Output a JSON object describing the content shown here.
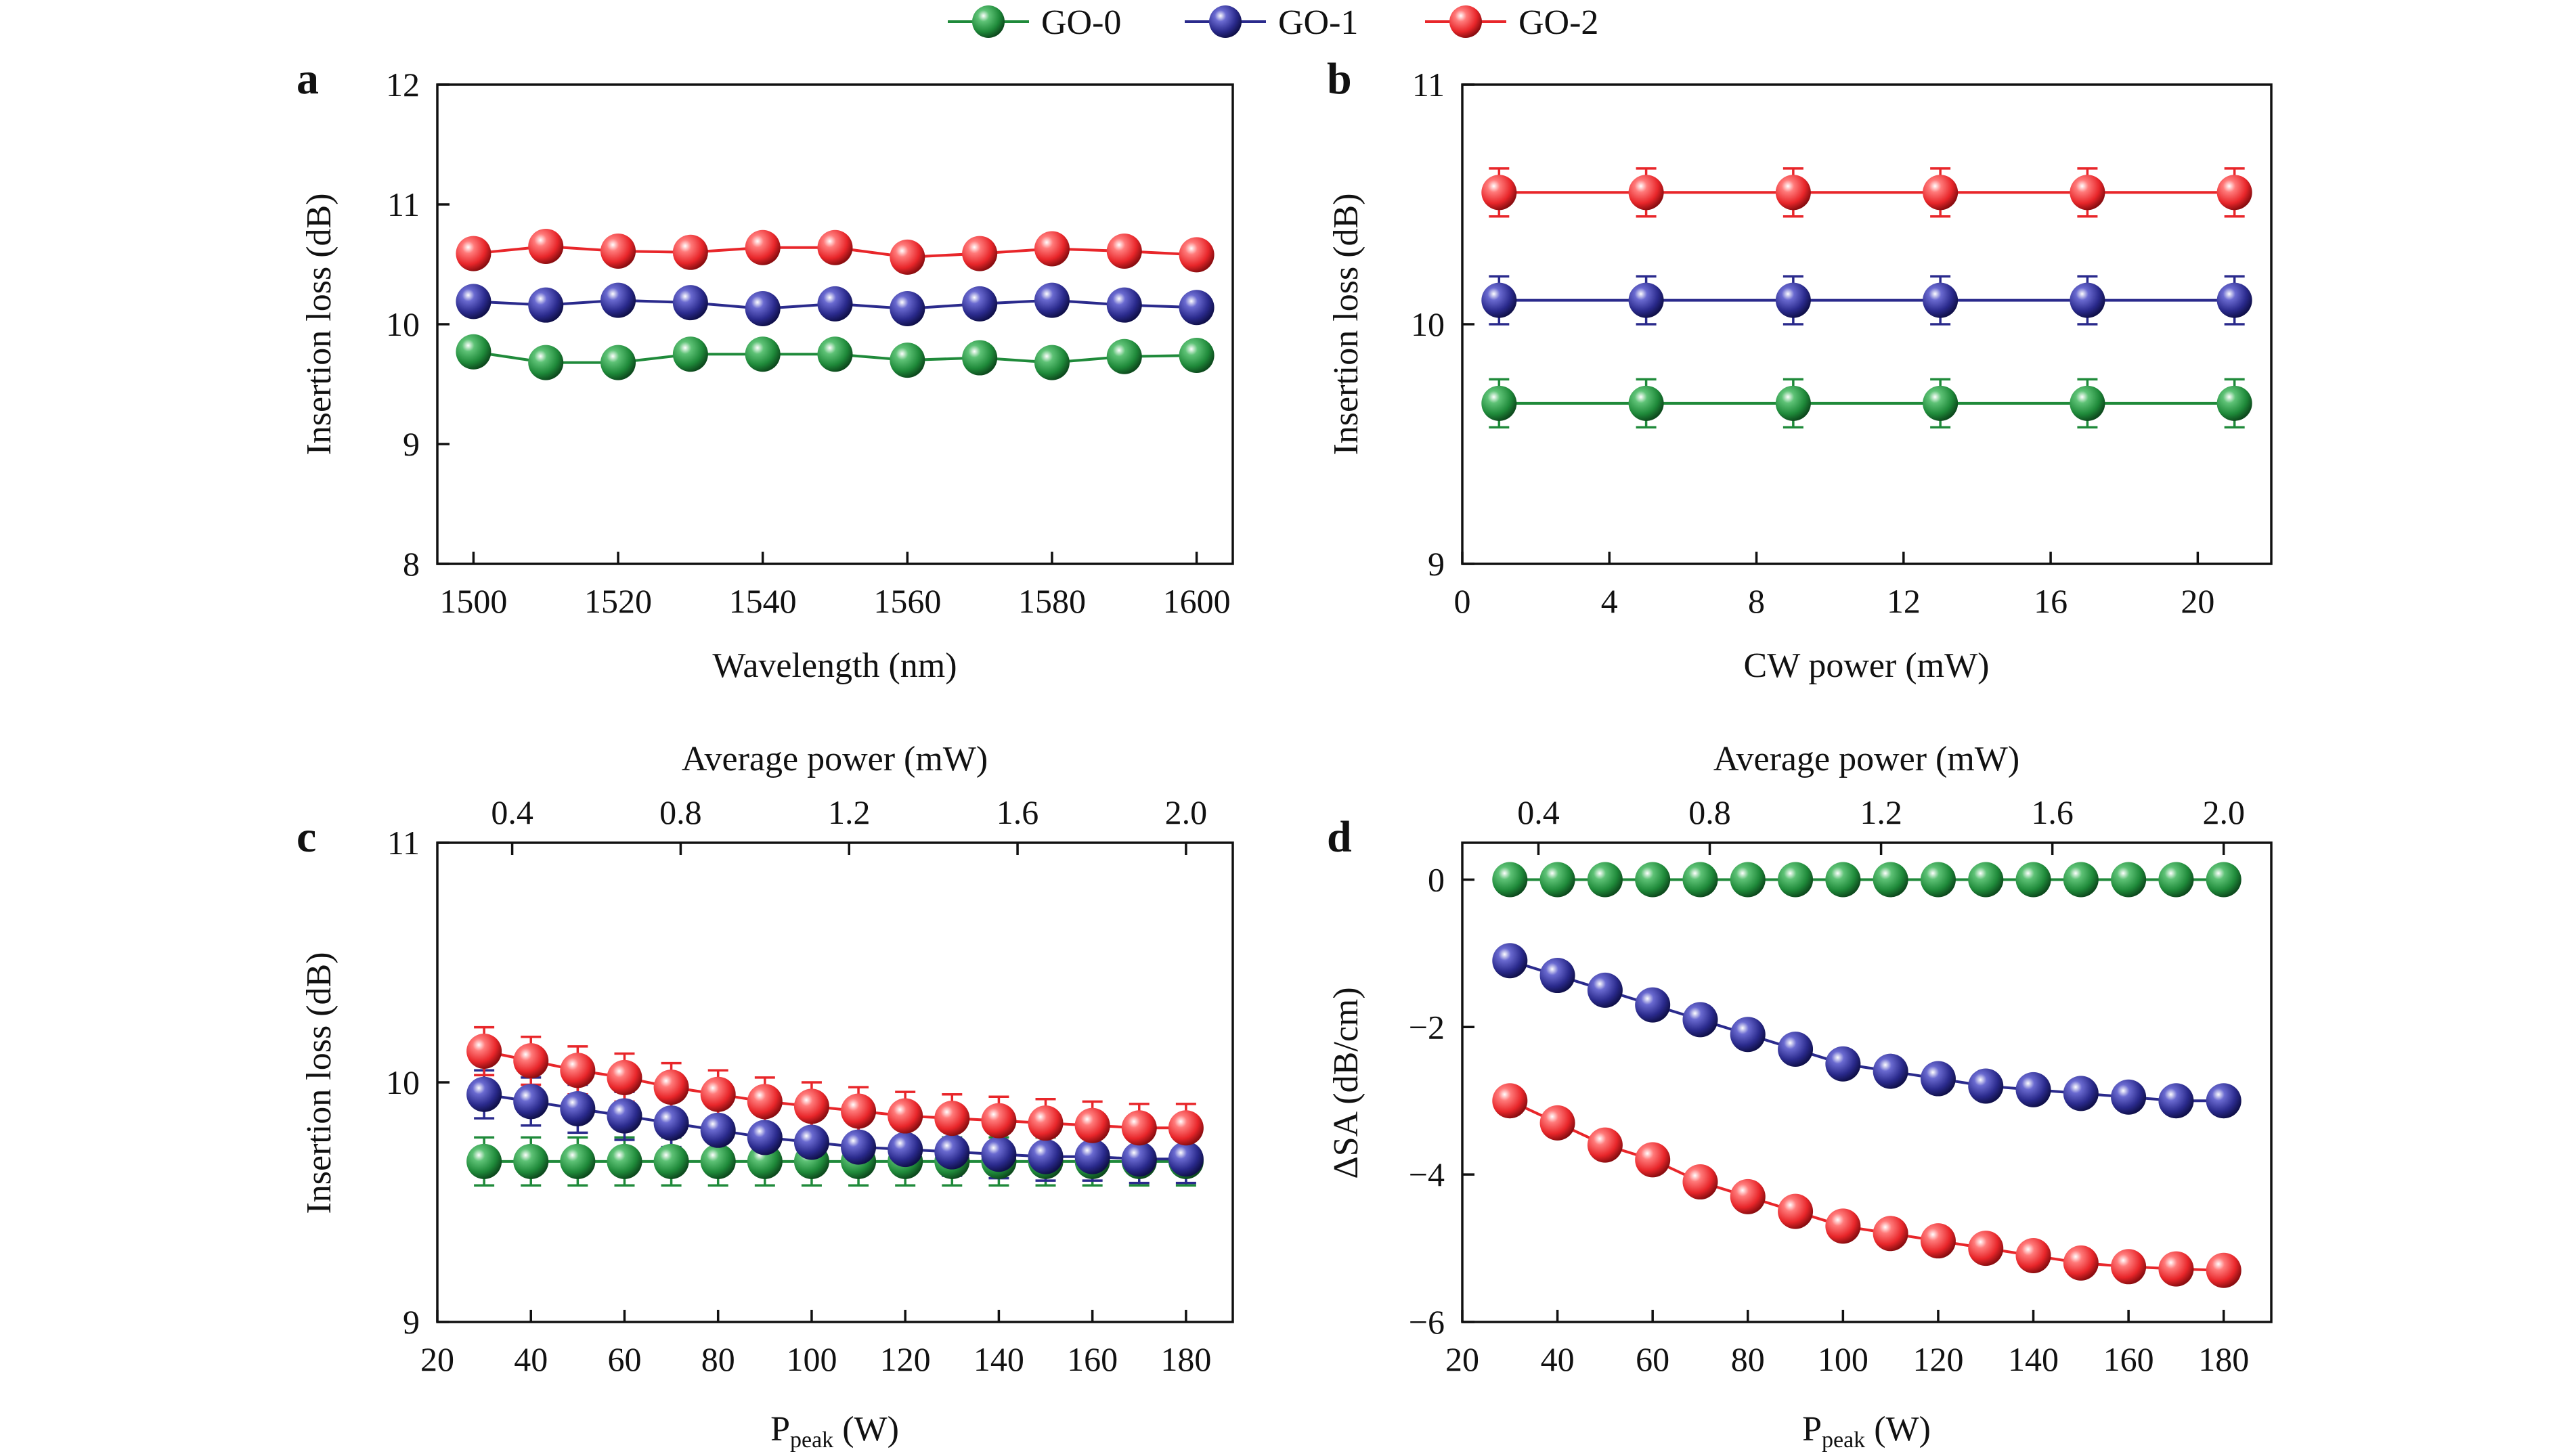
{
  "legend": [
    {
      "name": "GO-0",
      "color": "#1f8a3a"
    },
    {
      "name": "GO-1",
      "color": "#2a2a8c"
    },
    {
      "name": "GO-2",
      "color": "#e8262a"
    }
  ],
  "chart_data": [
    {
      "panel": "a",
      "type": "line",
      "xlabel": "Wavelength (nm)",
      "ylabel": "Insertion loss (dB)",
      "xlim": [
        1495,
        1605
      ],
      "ylim": [
        8,
        12
      ],
      "xticks": [
        1500,
        1520,
        1540,
        1560,
        1580,
        1600
      ],
      "yticks": [
        8,
        9,
        10,
        11,
        12
      ],
      "x": [
        1500,
        1510,
        1520,
        1530,
        1540,
        1550,
        1560,
        1570,
        1580,
        1590,
        1600
      ],
      "series": [
        {
          "name": "GO-0",
          "values": [
            9.77,
            9.68,
            9.68,
            9.75,
            9.75,
            9.75,
            9.7,
            9.72,
            9.68,
            9.73,
            9.74
          ]
        },
        {
          "name": "GO-1",
          "values": [
            10.19,
            10.16,
            10.2,
            10.18,
            10.13,
            10.17,
            10.13,
            10.17,
            10.2,
            10.16,
            10.14
          ]
        },
        {
          "name": "GO-2",
          "values": [
            10.59,
            10.65,
            10.61,
            10.6,
            10.64,
            10.64,
            10.56,
            10.59,
            10.63,
            10.61,
            10.58
          ]
        }
      ]
    },
    {
      "panel": "b",
      "type": "line",
      "xlabel": "CW power (mW)",
      "ylabel": "Insertion loss (dB)",
      "xlim": [
        0,
        22
      ],
      "ylim": [
        9,
        11
      ],
      "xticks": [
        0,
        4,
        8,
        12,
        16,
        20
      ],
      "yticks": [
        9,
        10,
        11
      ],
      "x": [
        1,
        5,
        9,
        13,
        17,
        21
      ],
      "error": 0.1,
      "series": [
        {
          "name": "GO-0",
          "values": [
            9.67,
            9.67,
            9.67,
            9.67,
            9.67,
            9.67
          ]
        },
        {
          "name": "GO-1",
          "values": [
            10.1,
            10.1,
            10.1,
            10.1,
            10.1,
            10.1
          ]
        },
        {
          "name": "GO-2",
          "values": [
            10.55,
            10.55,
            10.55,
            10.55,
            10.55,
            10.55
          ]
        }
      ]
    },
    {
      "panel": "c",
      "type": "line",
      "xlabel": "P",
      "xlabel_sub": "peak",
      "xlabel_unit": " (W)",
      "ylabel": "Insertion loss (dB)",
      "top_xlabel": "Average power (mW)",
      "top_xticks": [
        "0.4",
        "0.8",
        "1.2",
        "1.6",
        "2.0"
      ],
      "top_xtick_positions": [
        36,
        72,
        108,
        144,
        180
      ],
      "xlim": [
        20,
        190
      ],
      "ylim": [
        9,
        11
      ],
      "xticks": [
        20,
        40,
        60,
        80,
        100,
        120,
        140,
        160,
        180
      ],
      "yticks": [
        9,
        10,
        11
      ],
      "x": [
        30,
        40,
        50,
        60,
        70,
        80,
        90,
        100,
        110,
        120,
        130,
        140,
        150,
        160,
        170,
        180
      ],
      "error": 0.1,
      "series": [
        {
          "name": "GO-0",
          "values": [
            9.67,
            9.67,
            9.67,
            9.67,
            9.67,
            9.67,
            9.67,
            9.67,
            9.67,
            9.67,
            9.67,
            9.67,
            9.67,
            9.67,
            9.67,
            9.67
          ]
        },
        {
          "name": "GO-1",
          "values": [
            9.95,
            9.92,
            9.89,
            9.86,
            9.83,
            9.8,
            9.77,
            9.75,
            9.73,
            9.72,
            9.71,
            9.7,
            9.69,
            9.69,
            9.68,
            9.68
          ]
        },
        {
          "name": "GO-2",
          "values": [
            10.13,
            10.09,
            10.05,
            10.02,
            9.98,
            9.95,
            9.92,
            9.9,
            9.88,
            9.86,
            9.85,
            9.84,
            9.83,
            9.82,
            9.81,
            9.81
          ]
        }
      ]
    },
    {
      "panel": "d",
      "type": "line",
      "xlabel": "P",
      "xlabel_sub": "peak",
      "xlabel_unit": " (W)",
      "ylabel": "ΔSA (dB/cm)",
      "top_xlabel": "Average power (mW)",
      "top_xticks": [
        "0.4",
        "0.8",
        "1.2",
        "1.6",
        "2.0"
      ],
      "top_xtick_positions": [
        36,
        72,
        108,
        144,
        180
      ],
      "xlim": [
        20,
        190
      ],
      "ylim": [
        -6,
        0.5
      ],
      "xticks": [
        20,
        40,
        60,
        80,
        100,
        120,
        140,
        160,
        180
      ],
      "yticks": [
        -6,
        -4,
        -2,
        0
      ],
      "ytick_labels": [
        "−6",
        "−4",
        "−2",
        "0"
      ],
      "x": [
        30,
        40,
        50,
        60,
        70,
        80,
        90,
        100,
        110,
        120,
        130,
        140,
        150,
        160,
        170,
        180
      ],
      "series": [
        {
          "name": "GO-0",
          "values": [
            0,
            0,
            0,
            0,
            0,
            0,
            0,
            0,
            0,
            0,
            0,
            0,
            0,
            0,
            0,
            0
          ]
        },
        {
          "name": "GO-1",
          "values": [
            -1.1,
            -1.3,
            -1.5,
            -1.7,
            -1.9,
            -2.1,
            -2.3,
            -2.5,
            -2.6,
            -2.7,
            -2.8,
            -2.85,
            -2.9,
            -2.95,
            -3.0,
            -3.0
          ]
        },
        {
          "name": "GO-2",
          "values": [
            -3.0,
            -3.3,
            -3.6,
            -3.8,
            -4.1,
            -4.3,
            -4.5,
            -4.7,
            -4.8,
            -4.9,
            -5.0,
            -5.1,
            -5.2,
            -5.25,
            -5.28,
            -5.3
          ]
        }
      ]
    }
  ]
}
